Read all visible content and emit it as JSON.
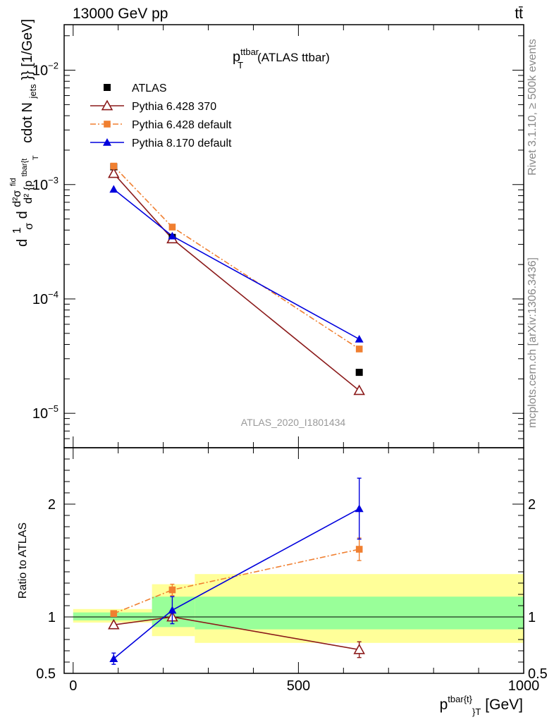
{
  "header": {
    "left": "13000 GeV pp",
    "right": "tt̄"
  },
  "side_labels": {
    "rivet": "Rivet 3.1.10, ≥ 500k events",
    "mcplots": "mcplots.cern.ch [arXiv:1306.3436]"
  },
  "chart_data": [
    {
      "type": "line",
      "title": "p_T^ttbar (ATLAS ttbar)",
      "title_main": "p",
      "title_sup": "ttbar",
      "title_sub": "T",
      "title_rest": "(ATLAS ttbar)",
      "watermark": "ATLAS_2020_I1801434",
      "ylabel": "d 1/σ d d²σ^fid / d²{p^tbar{t}_T} cdot N_jets}} [1/GeV]",
      "ylabel_parts": {
        "prefix": "d",
        "frac1_num": "1",
        "frac1_den": "σ",
        "frac2_pre": "d",
        "frac3_num": "d²σ",
        "frac3_num_sup": "fid",
        "frac3_den": "d² {p",
        "frac3_den_sup": "tbar{t",
        "frac3_den_sub": "T",
        "suffix_main": "cdot N",
        "suffix_sub": "jets",
        "suffix_end": "}} [1/GeV]"
      },
      "y_scale": "log",
      "ylim": [
        5e-06,
        0.025
      ],
      "xlim": [
        -20,
        1000
      ],
      "y_ticks": [
        {
          "value": 0.01,
          "base": "10",
          "exp": "−2"
        },
        {
          "value": 0.001,
          "base": "10",
          "exp": "−3"
        },
        {
          "value": 0.0001,
          "base": "10",
          "exp": "−4"
        },
        {
          "value": 1e-05,
          "base": "10",
          "exp": "−5"
        }
      ],
      "legend_position": "top-left",
      "series": [
        {
          "name": "ATLAS",
          "color": "#000000",
          "marker": "square-filled",
          "line": "none",
          "x": [
            90,
            220,
            635
          ],
          "y": [
            0.00143,
            0.000345,
            2.28e-05
          ]
        },
        {
          "name": "Pythia 6.428 370",
          "color": "#8b1a1a",
          "marker": "triangle-open",
          "line": "solid",
          "x": [
            90,
            220,
            635
          ],
          "y": [
            0.00125,
            0.000335,
            1.58e-05
          ]
        },
        {
          "name": "Pythia 6.428 default",
          "color": "#f07f30",
          "marker": "square-small",
          "line": "dashdot",
          "x": [
            90,
            220,
            635
          ],
          "y": [
            0.00145,
            0.000425,
            3.65e-05
          ]
        },
        {
          "name": "Pythia 8.170 default",
          "color": "#0000dd",
          "marker": "triangle-filled",
          "line": "solid",
          "x": [
            90,
            220,
            635
          ],
          "y": [
            0.00091,
            0.000355,
            4.45e-05
          ]
        }
      ]
    },
    {
      "type": "line",
      "ylabel": "Ratio to ATLAS",
      "xlabel": "p^tbar{t}}_T [GeV]",
      "xlabel_parts": {
        "main": "p",
        "sup": "tbar{t}",
        "sub": "}",
        "sub2": "T",
        "rest": "[GeV]"
      },
      "xlim": [
        -20,
        1000
      ],
      "ylim": [
        0.5,
        2.5
      ],
      "x_ticks": [
        0,
        500,
        1000
      ],
      "y_ticks": [
        0.5,
        1,
        2
      ],
      "bands": [
        {
          "x0": 0,
          "x1": 175,
          "yellow": [
            0.95,
            1.07
          ],
          "green": [
            0.97,
            1.04
          ]
        },
        {
          "x0": 175,
          "x1": 270,
          "yellow": [
            0.83,
            1.29
          ],
          "green": [
            0.91,
            1.18
          ]
        },
        {
          "x0": 270,
          "x1": 1000,
          "yellow": [
            0.77,
            1.38
          ],
          "green": [
            0.89,
            1.18
          ]
        }
      ],
      "series": [
        {
          "name": "Pythia 6.428 370",
          "color": "#8b1a1a",
          "marker": "triangle-open",
          "line": "solid",
          "x": [
            90,
            220,
            635
          ],
          "y": [
            0.93,
            1.0,
            0.71
          ],
          "err": [
            0,
            0.0,
            0.07
          ]
        },
        {
          "name": "Pythia 6.428 default",
          "color": "#f07f30",
          "marker": "square-small",
          "line": "dashdot",
          "x": [
            90,
            220,
            635
          ],
          "y": [
            1.03,
            1.24,
            1.6
          ],
          "err": [
            0,
            0.05,
            0.1
          ]
        },
        {
          "name": "Pythia 8.170 default",
          "color": "#0000dd",
          "marker": "triangle-filled",
          "line": "solid",
          "x": [
            90,
            220,
            635
          ],
          "y": [
            0.63,
            1.06,
            1.96
          ],
          "err": [
            0.05,
            0.12,
            0.27
          ]
        }
      ]
    }
  ]
}
